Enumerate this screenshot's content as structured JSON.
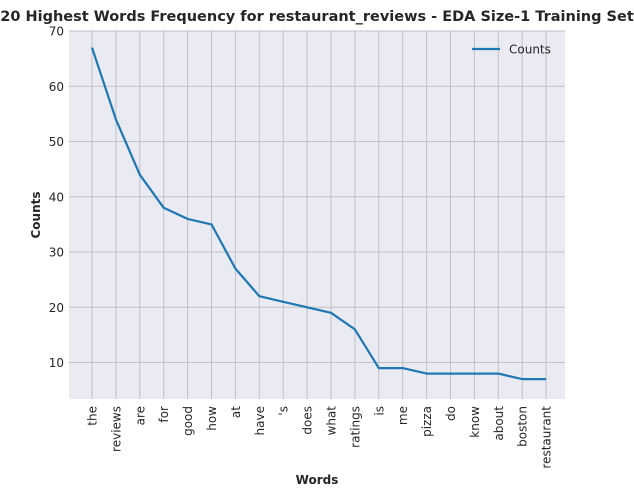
{
  "chart_data": {
    "type": "line",
    "title": "20 Highest Words Frequency for restaurant_reviews - EDA Size-1 Training Set",
    "xlabel": "Words",
    "ylabel": "Counts",
    "categories": [
      "the",
      "reviews",
      "are",
      "for",
      "good",
      "how",
      "at",
      "have",
      "'s",
      "does",
      "what",
      "ratings",
      "is",
      "me",
      "pizza",
      "do",
      "know",
      "about",
      "boston",
      "restaurant"
    ],
    "series": [
      {
        "name": "Counts",
        "color": "#1f77b4",
        "values": [
          67,
          54,
          44,
          38,
          36,
          35,
          27,
          22,
          21,
          20,
          19,
          16,
          9,
          9,
          8,
          8,
          8,
          8,
          7,
          7
        ]
      }
    ],
    "ylim": [
      3.4,
      70
    ],
    "yticks": [
      10,
      20,
      30,
      40,
      50,
      60,
      70
    ],
    "grid": true,
    "legend": "top-right",
    "colors": {
      "plot_bg": "#eaeaf2",
      "grid": "#c0c0c8"
    }
  }
}
